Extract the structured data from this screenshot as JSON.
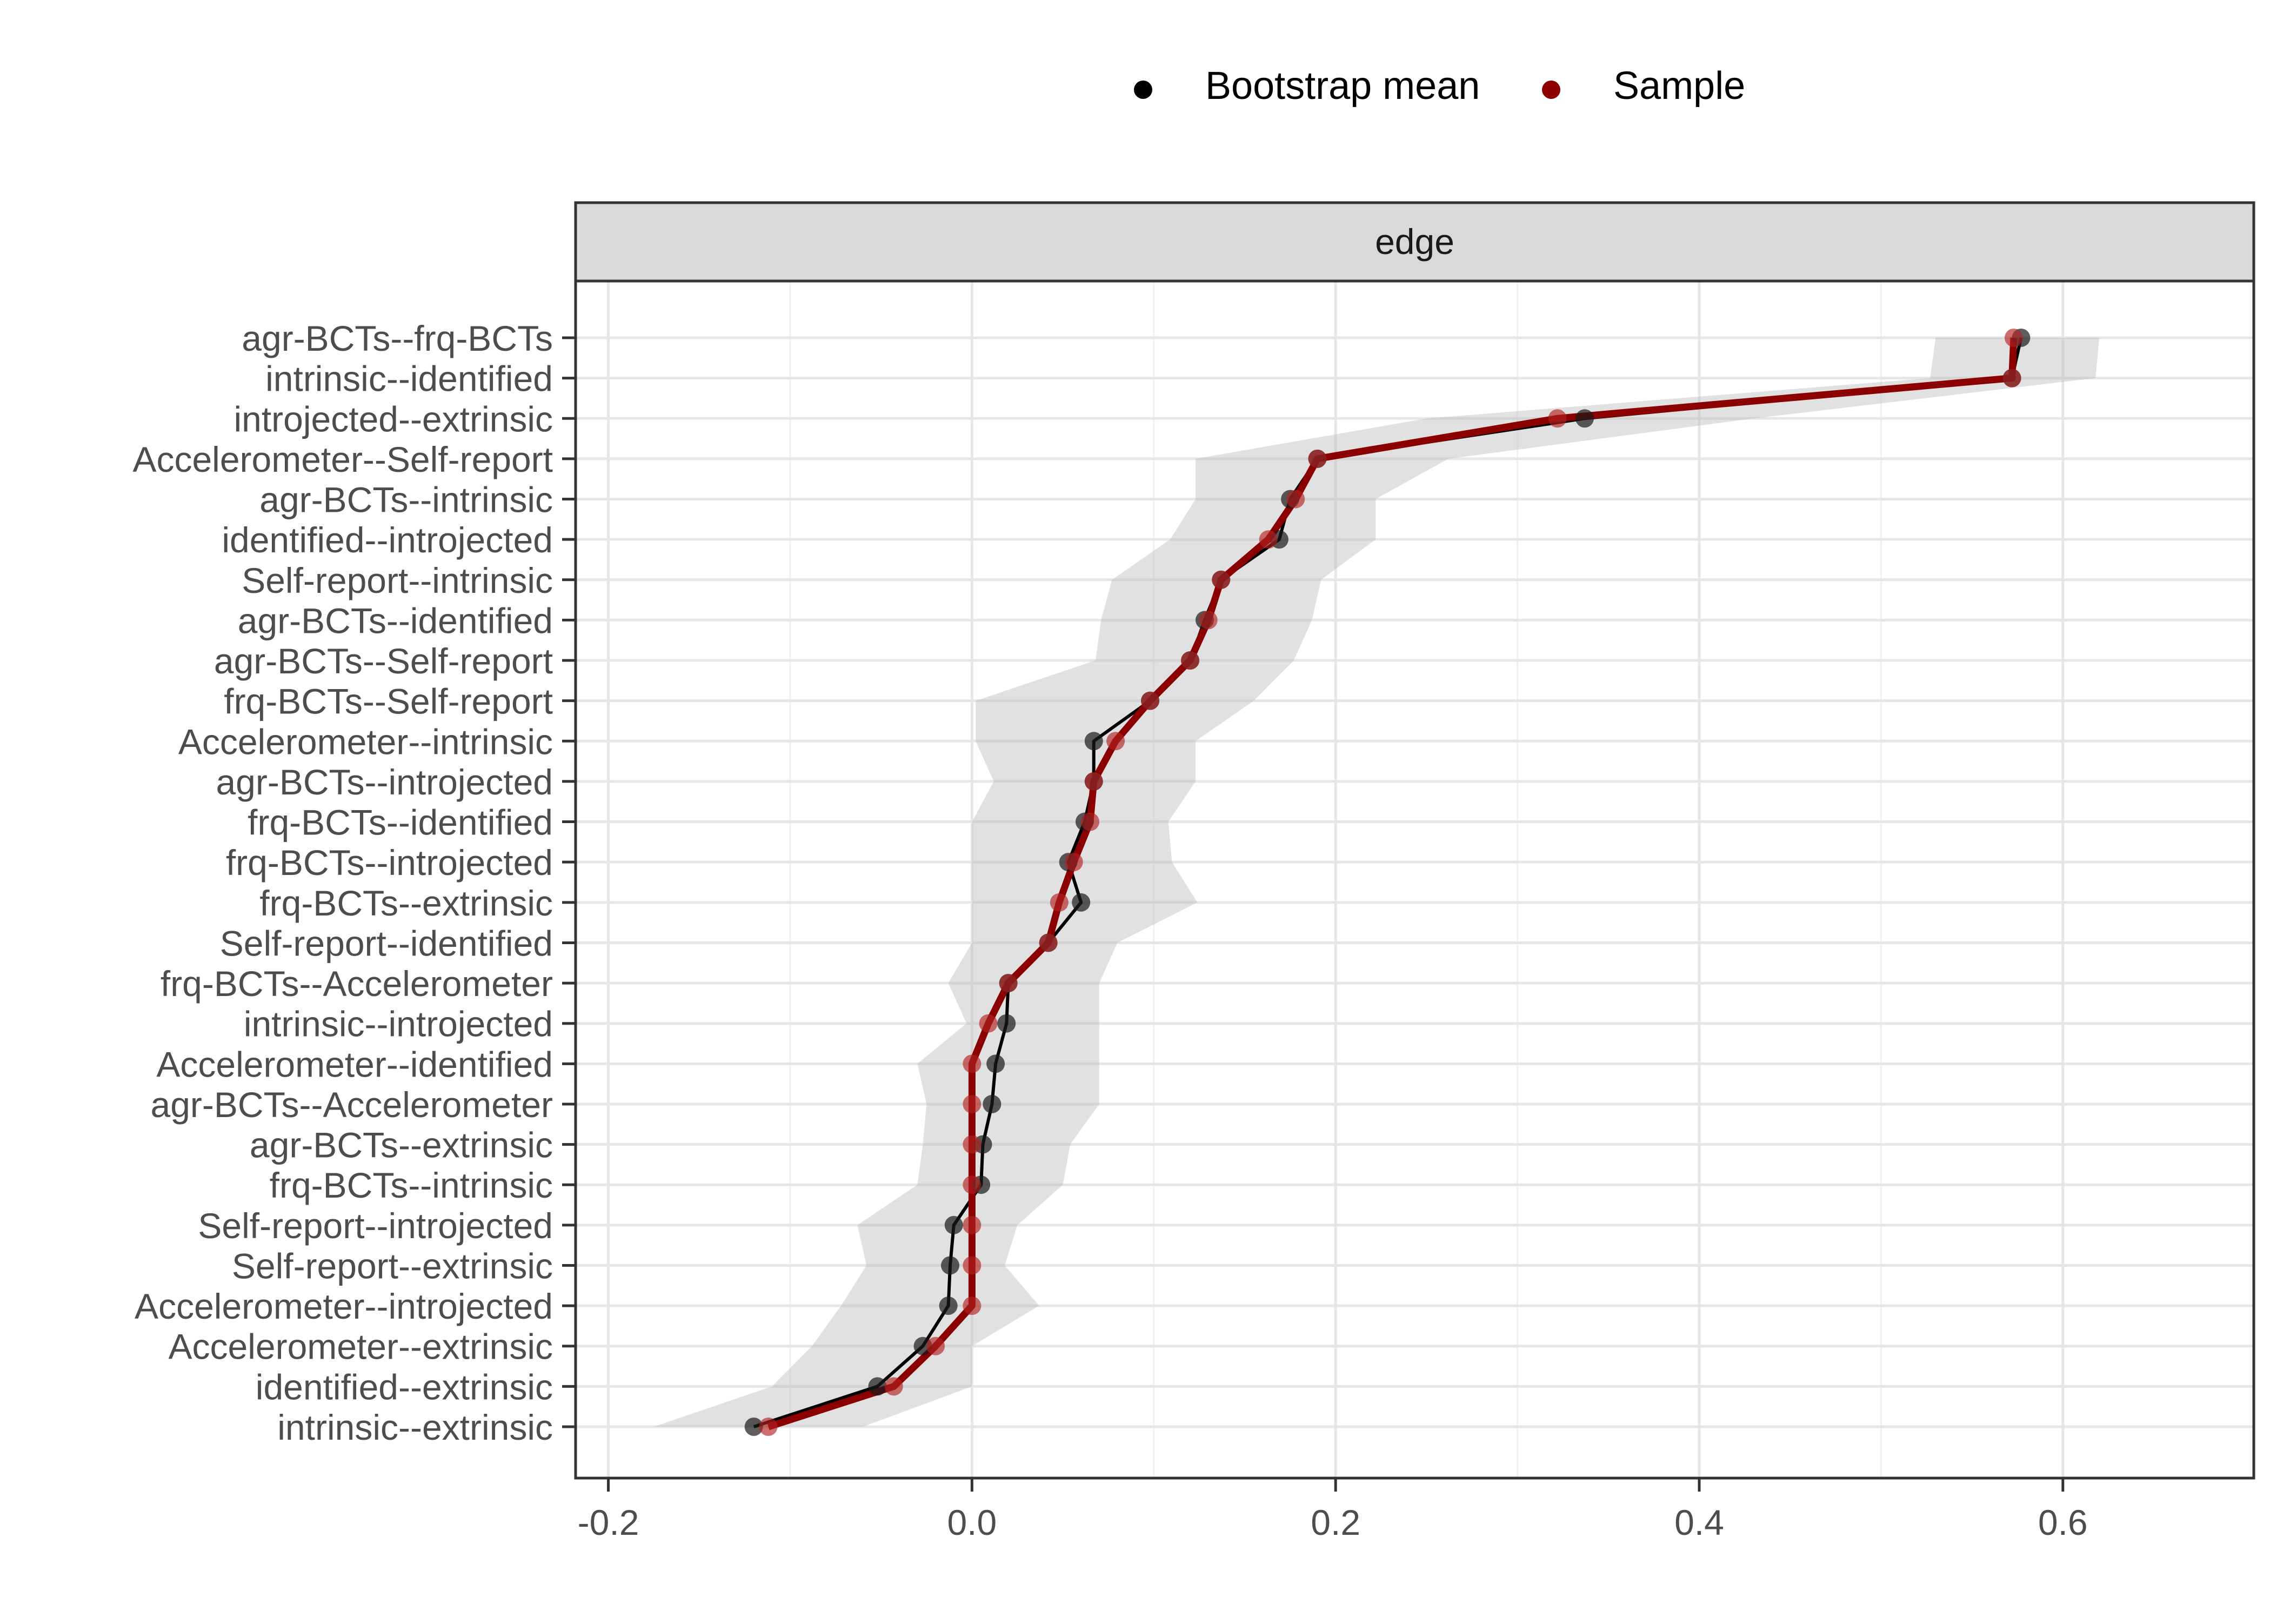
{
  "legend": {
    "items": [
      {
        "label": "Bootstrap mean",
        "color": "#000000"
      },
      {
        "label": "Sample",
        "color": "#8b0000"
      }
    ],
    "position": "top"
  },
  "facet": {
    "label": "edge"
  },
  "chart_data": {
    "type": "line",
    "orientation": "horizontal",
    "xlim": [
      -0.2,
      0.6
    ],
    "x_ticks": [
      "-0.2",
      "0.0",
      "0.2",
      "0.4",
      "0.6"
    ],
    "grid": true,
    "categories": [
      "agr-BCTs--frq-BCTs",
      "intrinsic--identified",
      "introjected--extrinsic",
      "Accelerometer--Self-report",
      "agr-BCTs--intrinsic",
      "identified--introjected",
      "Self-report--intrinsic",
      "agr-BCTs--identified",
      "agr-BCTs--Self-report",
      "frq-BCTs--Self-report",
      "Accelerometer--intrinsic",
      "agr-BCTs--introjected",
      "frq-BCTs--identified",
      "frq-BCTs--introjected",
      "frq-BCTs--extrinsic",
      "Self-report--identified",
      "frq-BCTs--Accelerometer",
      "intrinsic--introjected",
      "Accelerometer--identified",
      "agr-BCTs--Accelerometer",
      "agr-BCTs--extrinsic",
      "frq-BCTs--intrinsic",
      "Self-report--introjected",
      "Self-report--extrinsic",
      "Accelerometer--introjected",
      "Accelerometer--extrinsic",
      "identified--extrinsic",
      "intrinsic--extrinsic"
    ],
    "series": [
      {
        "name": "Bootstrap mean",
        "color": "#000000",
        "values": [
          0.577,
          0.572,
          0.337,
          0.19,
          0.175,
          0.169,
          0.137,
          0.128,
          0.12,
          0.098,
          0.067,
          0.067,
          0.062,
          0.053,
          0.06,
          0.042,
          0.02,
          0.019,
          0.013,
          0.011,
          0.006,
          0.005,
          -0.01,
          -0.012,
          -0.013,
          -0.027,
          -0.052,
          -0.12
        ]
      },
      {
        "name": "Sample",
        "color": "#8b0000",
        "values": [
          0.573,
          0.572,
          0.322,
          0.19,
          0.178,
          0.163,
          0.137,
          0.13,
          0.12,
          0.098,
          0.079,
          0.067,
          0.065,
          0.056,
          0.048,
          0.042,
          0.02,
          0.009,
          0.0,
          0.0,
          0.0,
          0.0,
          0.0,
          0.0,
          0.0,
          -0.02,
          -0.043,
          -0.112
        ]
      }
    ],
    "ci_band": {
      "lower": [
        0.53,
        0.527,
        0.25,
        0.123,
        0.123,
        0.109,
        0.077,
        0.071,
        0.068,
        0.002,
        0.002,
        0.012,
        0.0,
        0.0,
        0.0,
        0.0,
        -0.013,
        -0.003,
        -0.03,
        -0.025,
        -0.027,
        -0.03,
        -0.063,
        -0.058,
        -0.072,
        -0.088,
        -0.11,
        -0.175
      ],
      "upper": [
        0.62,
        0.618,
        0.43,
        0.262,
        0.222,
        0.222,
        0.192,
        0.187,
        0.177,
        0.155,
        0.123,
        0.123,
        0.108,
        0.11,
        0.124,
        0.08,
        0.07,
        0.07,
        0.07,
        0.07,
        0.054,
        0.05,
        0.025,
        0.018,
        0.037,
        0.0,
        0.0,
        -0.06
      ]
    }
  }
}
